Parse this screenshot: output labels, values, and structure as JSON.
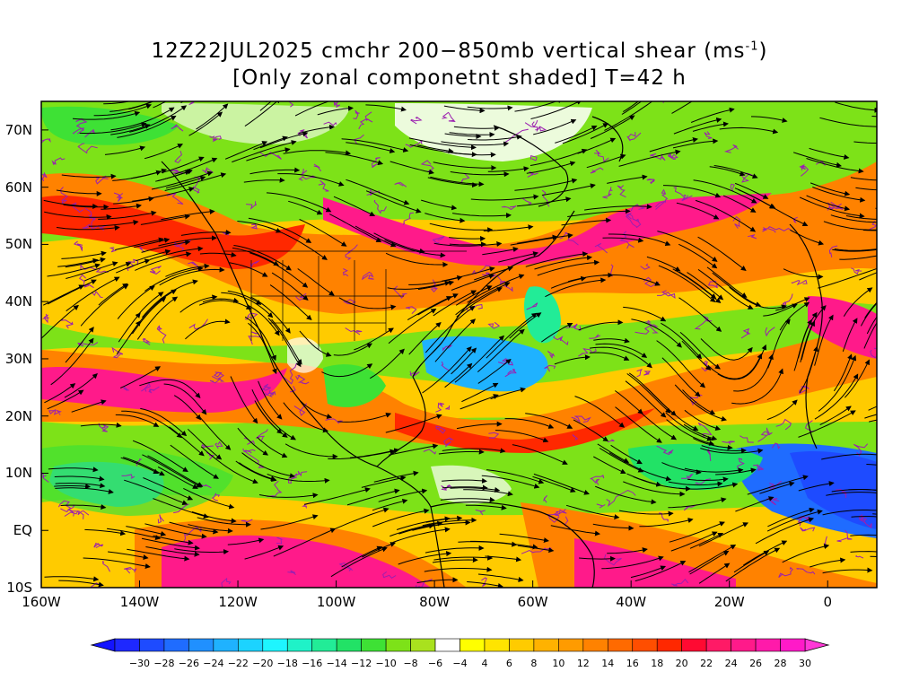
{
  "title": {
    "line1_prefix": "12Z22JUL2025 cmchr 200−850mb vertical shear (ms",
    "line1_sup": "-1",
    "line1_suffix": ")",
    "line2": "[Only zonal componetnt shaded] T=42 h"
  },
  "axes": {
    "lat_labels": [
      "70N",
      "60N",
      "50N",
      "40N",
      "30N",
      "20N",
      "10N",
      "EQ",
      "10S"
    ],
    "lat_values": [
      70,
      60,
      50,
      40,
      30,
      20,
      10,
      0,
      -10
    ],
    "lon_labels": [
      "160W",
      "140W",
      "120W",
      "100W",
      "80W",
      "60W",
      "40W",
      "20W",
      "0"
    ],
    "lon_values": [
      -160,
      -140,
      -120,
      -100,
      -80,
      -60,
      -40,
      -20,
      0
    ],
    "lon_range": [
      -160,
      10
    ],
    "lat_range": [
      -10,
      75
    ]
  },
  "colorbar": {
    "labels": [
      "−30",
      "−28",
      "−26",
      "−24",
      "−22",
      "−20",
      "−18",
      "−16",
      "−14",
      "−12",
      "−10",
      "−8",
      "−6",
      "−4",
      "4",
      "6",
      "8",
      "10",
      "12",
      "14",
      "16",
      "18",
      "20",
      "22",
      "24",
      "26",
      "28",
      "30"
    ],
    "colors": [
      "#1e28ff",
      "#1e4bff",
      "#1f6cff",
      "#2090ff",
      "#1fb2ff",
      "#1cd3ff",
      "#1ef5ff",
      "#1ff2c8",
      "#22ec97",
      "#22e266",
      "#3ee135",
      "#7de218",
      "#a9e11e",
      "#ffffff",
      "#ffff00",
      "#ffe400",
      "#ffcb00",
      "#ffb200",
      "#ff9b00",
      "#ff8200",
      "#ff6a00",
      "#ff4e00",
      "#ff2800",
      "#ff0a32",
      "#ff1a66",
      "#ff1a8a",
      "#ff1aaa",
      "#ff1ac8"
    ],
    "under_color": "#1414ff",
    "over_color": "#ff38d7"
  },
  "colors": {
    "contour_purple": "#9b1fb0",
    "streamline": "#000000",
    "coast": "#000000"
  }
}
